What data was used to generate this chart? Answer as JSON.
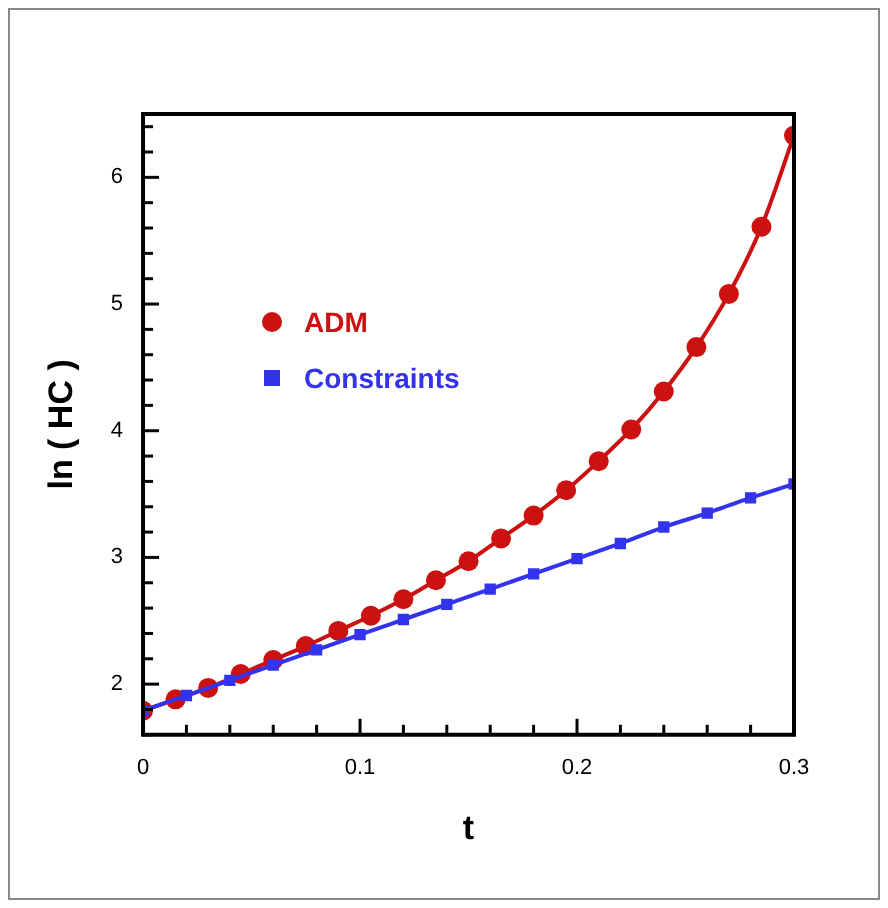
{
  "chart_data": {
    "type": "line",
    "xlabel": "t",
    "ylabel": "ln ( HC )",
    "xlim": [
      0,
      0.3
    ],
    "ylim": [
      1.6,
      6.5
    ],
    "xticks": [
      0,
      {
        "value": 0.02,
        "label": null
      },
      {
        "value": 0.04,
        "label": null
      },
      {
        "value": 0.06,
        "label": null
      },
      {
        "value": 0.08,
        "label": null
      },
      0.1,
      {
        "value": 0.12,
        "label": null
      },
      {
        "value": 0.14,
        "label": null
      },
      {
        "value": 0.16,
        "label": null
      },
      {
        "value": 0.18,
        "label": null
      },
      0.2,
      {
        "value": 0.22,
        "label": null
      },
      {
        "value": 0.24,
        "label": null
      },
      {
        "value": 0.26,
        "label": null
      },
      {
        "value": 0.28,
        "label": null
      },
      0.3
    ],
    "yticks": [
      {
        "value": 1.6,
        "label": null
      },
      {
        "value": 1.8,
        "label": null
      },
      2,
      {
        "value": 2.2,
        "label": null
      },
      {
        "value": 2.4,
        "label": null
      },
      {
        "value": 2.6,
        "label": null
      },
      {
        "value": 2.8,
        "label": null
      },
      3,
      {
        "value": 3.2,
        "label": null
      },
      {
        "value": 3.4,
        "label": null
      },
      {
        "value": 3.6,
        "label": null
      },
      {
        "value": 3.8,
        "label": null
      },
      4,
      {
        "value": 4.2,
        "label": null
      },
      {
        "value": 4.4,
        "label": null
      },
      {
        "value": 4.6,
        "label": null
      },
      {
        "value": 4.8,
        "label": null
      },
      5,
      {
        "value": 5.2,
        "label": null
      },
      {
        "value": 5.4,
        "label": null
      },
      {
        "value": 5.6,
        "label": null
      },
      {
        "value": 5.8,
        "label": null
      },
      6,
      {
        "value": 6.2,
        "label": null
      },
      {
        "value": 6.4,
        "label": null
      }
    ],
    "legend": "top left",
    "grid": false,
    "line_style": "solid",
    "series": [
      {
        "name": "ADM",
        "color": "#cc1111",
        "marker": "circle",
        "x": [
          0,
          0.015,
          0.03,
          0.045,
          0.06,
          0.075,
          0.09,
          0.105,
          0.12,
          0.135,
          0.15,
          0.165,
          0.18,
          0.195,
          0.21,
          0.225,
          0.24,
          0.255,
          0.27,
          0.285,
          0.3
        ],
        "values": [
          1.79,
          1.88,
          1.97,
          2.08,
          2.19,
          2.3,
          2.42,
          2.54,
          2.67,
          2.82,
          2.97,
          3.15,
          3.33,
          3.53,
          3.76,
          4.01,
          4.31,
          4.66,
          5.08,
          5.61,
          6.33
        ]
      },
      {
        "name": "Constraints",
        "color": "#3333ee",
        "marker": "square",
        "x": [
          0,
          0.02,
          0.04,
          0.06,
          0.08,
          0.1,
          0.12,
          0.14,
          0.16,
          0.18,
          0.2,
          0.22,
          0.24,
          0.26,
          0.28,
          0.3
        ],
        "values": [
          1.79,
          1.91,
          2.03,
          2.15,
          2.27,
          2.39,
          2.51,
          2.63,
          2.75,
          2.87,
          2.99,
          3.11,
          3.24,
          3.35,
          3.47,
          3.58
        ]
      }
    ]
  }
}
